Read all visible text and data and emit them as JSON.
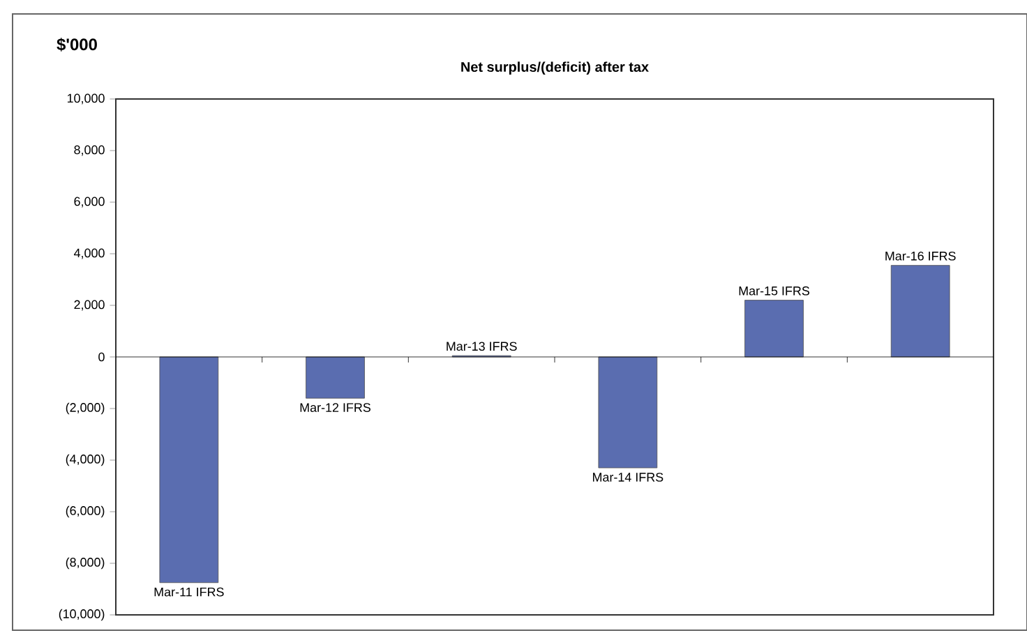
{
  "chart_data": {
    "type": "bar",
    "title": "Net surplus/(deficit) after tax",
    "ylabel": "$'000",
    "categories": [
      "Mar-11 IFRS",
      "Mar-12 IFRS",
      "Mar-13 IFRS",
      "Mar-14 IFRS",
      "Mar-15 IFRS",
      "Mar-16 IFRS"
    ],
    "values": [
      -8750,
      -1600,
      50,
      -4300,
      2200,
      3550
    ],
    "color": "#5a6db0",
    "ylim": [
      -10000,
      10000
    ],
    "yticks": [
      {
        "value": -10000,
        "label": "(10,000)"
      },
      {
        "value": -8000,
        "label": "(8,000)"
      },
      {
        "value": -6000,
        "label": "(6,000)"
      },
      {
        "value": -4000,
        "label": "(4,000)"
      },
      {
        "value": -2000,
        "label": "(2,000)"
      },
      0,
      {
        "value": 2000,
        "label": "2,000"
      },
      {
        "value": 4000,
        "label": "4,000"
      },
      {
        "value": 6000,
        "label": "6,000"
      },
      {
        "value": 8000,
        "label": "8,000"
      },
      {
        "value": 10000,
        "label": "10,000"
      }
    ],
    "ref_lines": [
      {
        "axis": "y",
        "value": 0,
        "color": "#000000"
      }
    ]
  }
}
